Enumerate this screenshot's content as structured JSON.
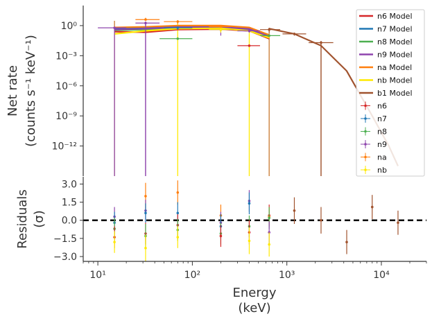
{
  "chart_data": [
    {
      "type": "line",
      "panel": "spectrum",
      "ylabel": "Net rate",
      "ylabel_unit": "(counts s⁻¹ keV⁻¹)",
      "xscale": "log",
      "yscale": "log",
      "xlim": [
        7,
        30000
      ],
      "ylim": [
        1e-15,
        100
      ],
      "yticks": [
        {
          "v": 1,
          "label": "10⁰"
        },
        {
          "v": 0.001,
          "label": "10⁻³"
        },
        {
          "v": 1e-06,
          "label": "10⁻⁶"
        },
        {
          "v": 1e-09,
          "label": "10⁻⁹"
        },
        {
          "v": 1e-12,
          "label": "10⁻¹²"
        }
      ],
      "legend_position": "top-right",
      "models": [
        {
          "name": "n6 Model",
          "color": "#d62728",
          "x": [
            15,
            32,
            70,
            200,
            400,
            650
          ],
          "y": [
            0.25,
            0.22,
            0.4,
            0.45,
            0.3,
            0.05
          ]
        },
        {
          "name": "n7 Model",
          "color": "#1f77b4",
          "x": [
            15,
            32,
            70,
            200,
            400,
            650
          ],
          "y": [
            0.5,
            0.6,
            0.8,
            0.8,
            0.5,
            0.09
          ]
        },
        {
          "name": "n8 Model",
          "color": "#4caf50",
          "x": [
            15,
            32,
            70,
            200,
            400,
            650
          ],
          "y": [
            0.35,
            0.4,
            0.55,
            0.6,
            0.4,
            0.07
          ]
        },
        {
          "name": "n9 Model",
          "color": "#8e44ad",
          "x": [
            15,
            32,
            70,
            200,
            400,
            650
          ],
          "y": [
            0.4,
            0.5,
            0.7,
            0.7,
            0.45,
            0.08
          ]
        },
        {
          "name": "na Model",
          "color": "#ff7f0e",
          "x": [
            15,
            32,
            70,
            200,
            400,
            650
          ],
          "y": [
            0.65,
            0.75,
            1.0,
            1.0,
            0.65,
            0.12
          ]
        },
        {
          "name": "nb Model",
          "color": "#ffea00",
          "x": [
            15,
            32,
            70,
            200,
            400,
            650
          ],
          "y": [
            0.15,
            0.3,
            0.5,
            0.55,
            0.3,
            0.06
          ]
        },
        {
          "name": "b1 Model",
          "color": "#a0522d",
          "x": [
            650,
            1200,
            2300,
            4300,
            8000,
            12000,
            15000
          ],
          "y": [
            0.5,
            0.15,
            0.01,
            3e-05,
            1e-09,
            1e-12,
            1e-14
          ]
        }
      ],
      "data_series": [
        {
          "name": "n6",
          "color": "#d62728",
          "points": [
            {
              "x": 400,
              "xlo": 300,
              "xhi": 520,
              "y": 0.01,
              "ylo": 0.008,
              "yhi": 0.012
            }
          ]
        },
        {
          "name": "n7",
          "color": "#1f77b4",
          "points": [
            {
              "x": 70,
              "xlo": 50,
              "xhi": 100,
              "y": 0.6,
              "ylo": 0.4,
              "yhi": 0.8
            }
          ]
        },
        {
          "name": "n8",
          "color": "#4caf50",
          "points": [
            {
              "x": 70,
              "xlo": 45,
              "xhi": 100,
              "y": 0.05,
              "ylo": 0.04,
              "yhi": 0.06
            },
            {
              "x": 650,
              "xlo": 520,
              "xhi": 850,
              "y": 0.1,
              "ylo": 0.08,
              "yhi": 0.12
            }
          ]
        },
        {
          "name": "n9",
          "color": "#8e44ad",
          "points": [
            {
              "x": 15,
              "xlo": 10,
              "xhi": 20,
              "y": 0.6,
              "ylo": 1e-15,
              "yhi": 0.8
            },
            {
              "x": 32,
              "xlo": 25,
              "xhi": 45,
              "y": 1.8,
              "ylo": 1e-15,
              "yhi": 2.5
            },
            {
              "x": 200,
              "xlo": 150,
              "xhi": 270,
              "y": 0.4,
              "ylo": 0.1,
              "yhi": 0.6
            },
            {
              "x": 400,
              "xlo": 300,
              "xhi": 520,
              "y": 0.3,
              "ylo": 0.2,
              "yhi": 0.4
            }
          ]
        },
        {
          "name": "na",
          "color": "#ff7f0e",
          "points": [
            {
              "x": 32,
              "xlo": 25,
              "xhi": 45,
              "y": 4.0,
              "ylo": 3.0,
              "yhi": 6.0
            },
            {
              "x": 70,
              "xlo": 50,
              "xhi": 100,
              "y": 2.5,
              "ylo": 1.5,
              "yhi": 3.5
            },
            {
              "x": 200,
              "xlo": 150,
              "xhi": 270,
              "y": 0.8,
              "ylo": 0.5,
              "yhi": 1.1
            }
          ]
        },
        {
          "name": "nb",
          "color": "#ffea00",
          "points": [
            {
              "x": 200,
              "xlo": 150,
              "xhi": 270,
              "y": 0.4,
              "ylo": 0.2,
              "yhi": 0.6
            }
          ]
        },
        {
          "name": "b1",
          "color": "#a0522d",
          "points": [
            {
              "x": 650,
              "xlo": 520,
              "xhi": 850,
              "y": 0.4,
              "ylo": 0.2,
              "yhi": 0.6
            },
            {
              "x": 1200,
              "xlo": 900,
              "xhi": 1600,
              "y": 0.15,
              "ylo": 0.1,
              "yhi": 0.2
            },
            {
              "x": 2300,
              "xlo": 1700,
              "xhi": 3100,
              "y": 0.02,
              "ylo": 1e-15,
              "yhi": 0.03
            }
          ]
        }
      ],
      "vertical_drops": [
        {
          "x": 15,
          "color": "#c8782f",
          "ylo": 1e-15,
          "yhi": 3
        },
        {
          "x": 32,
          "color": "#8e44ad",
          "ylo": 1e-15,
          "yhi": 2.5
        },
        {
          "x": 70,
          "color": "#ffea00",
          "ylo": 1e-15,
          "yhi": 2.5
        },
        {
          "x": 400,
          "color": "#ffea00",
          "ylo": 1e-15,
          "yhi": 0.4
        },
        {
          "x": 650,
          "color": "#c8782f",
          "ylo": 1e-15,
          "yhi": 0.6
        },
        {
          "x": 2300,
          "color": "#a0522d",
          "ylo": 1e-15,
          "yhi": 0.02
        }
      ]
    },
    {
      "type": "scatter",
      "panel": "residuals",
      "ylabel": "Residuals",
      "ylabel_unit": "(σ)",
      "xlabel": "Energy",
      "xlabel_unit": "(keV)",
      "xscale": "log",
      "xlim": [
        7,
        30000
      ],
      "ylim": [
        -3.4,
        3.6
      ],
      "yticks": [
        {
          "v": 3.0,
          "label": "3.0"
        },
        {
          "v": 1.5,
          "label": "1.5"
        },
        {
          "v": 0.0,
          "label": "0.0"
        },
        {
          "v": -1.5,
          "label": "−1.5"
        },
        {
          "v": -3.0,
          "label": "−3.0"
        }
      ],
      "xticks": [
        {
          "v": 10,
          "label": "10¹"
        },
        {
          "v": 100,
          "label": "10²"
        },
        {
          "v": 1000,
          "label": "10³"
        },
        {
          "v": 10000,
          "label": "10⁴"
        }
      ],
      "zero_line": 0,
      "points": [
        {
          "x": 15,
          "y": 0.3,
          "err": 0.8,
          "color": "#8e44ad"
        },
        {
          "x": 15,
          "y": -0.2,
          "err": 0.9,
          "color": "#1f77b4"
        },
        {
          "x": 15,
          "y": -0.7,
          "err": 0.9,
          "color": "#4caf50"
        },
        {
          "x": 15,
          "y": -1.4,
          "err": 0.9,
          "color": "#d62728"
        },
        {
          "x": 15,
          "y": -1.8,
          "err": 0.9,
          "color": "#ffea00"
        },
        {
          "x": 32,
          "y": 2.0,
          "err": 1.1,
          "color": "#ff7f0e"
        },
        {
          "x": 32,
          "y": 0.8,
          "err": 0.9,
          "color": "#8e44ad"
        },
        {
          "x": 32,
          "y": 0.6,
          "err": 0.8,
          "color": "#1f77b4"
        },
        {
          "x": 32,
          "y": -1.1,
          "err": 0.9,
          "color": "#d62728"
        },
        {
          "x": 32,
          "y": -1.3,
          "err": 1.0,
          "color": "#4caf50"
        },
        {
          "x": 32,
          "y": -2.3,
          "err": 1.1,
          "color": "#ffea00"
        },
        {
          "x": 70,
          "y": 2.3,
          "err": 1.0,
          "color": "#ff7f0e"
        },
        {
          "x": 70,
          "y": 0.6,
          "err": 0.9,
          "color": "#1f77b4"
        },
        {
          "x": 70,
          "y": -0.4,
          "err": 0.9,
          "color": "#d62728"
        },
        {
          "x": 70,
          "y": -0.8,
          "err": 0.9,
          "color": "#4caf50"
        },
        {
          "x": 70,
          "y": -1.4,
          "err": 0.9,
          "color": "#ffea00"
        },
        {
          "x": 200,
          "y": 0.4,
          "err": 0.9,
          "color": "#ff7f0e"
        },
        {
          "x": 200,
          "y": -0.2,
          "err": 0.9,
          "color": "#8e44ad"
        },
        {
          "x": 200,
          "y": -0.5,
          "err": 1.0,
          "color": "#1f77b4"
        },
        {
          "x": 200,
          "y": -1.1,
          "err": 0.9,
          "color": "#4caf50"
        },
        {
          "x": 200,
          "y": -1.3,
          "err": 0.9,
          "color": "#d62728"
        },
        {
          "x": 400,
          "y": 1.6,
          "err": 0.9,
          "color": "#8e44ad"
        },
        {
          "x": 400,
          "y": 1.4,
          "err": 0.9,
          "color": "#1f77b4"
        },
        {
          "x": 400,
          "y": -0.5,
          "err": 0.9,
          "color": "#4caf50"
        },
        {
          "x": 400,
          "y": -1.0,
          "err": 1.0,
          "color": "#d62728"
        },
        {
          "x": 400,
          "y": -1.7,
          "err": 1.1,
          "color": "#ffea00"
        },
        {
          "x": 650,
          "y": 0.4,
          "err": 0.9,
          "color": "#d62728"
        },
        {
          "x": 650,
          "y": 0.3,
          "err": 0.8,
          "color": "#ff7f0e"
        },
        {
          "x": 650,
          "y": 0.2,
          "err": 0.9,
          "color": "#4caf50"
        },
        {
          "x": 650,
          "y": -1.0,
          "err": 0.9,
          "color": "#8e44ad"
        },
        {
          "x": 650,
          "y": -2.0,
          "err": 1.0,
          "color": "#ffea00"
        },
        {
          "x": 1200,
          "y": 0.8,
          "err": 1.1,
          "color": "#a0522d"
        },
        {
          "x": 2300,
          "y": 0.0,
          "err": 1.1,
          "color": "#a0522d"
        },
        {
          "x": 4300,
          "y": -1.8,
          "err": 1.0,
          "color": "#a0522d"
        },
        {
          "x": 8000,
          "y": 1.1,
          "err": 1.0,
          "color": "#a0522d"
        },
        {
          "x": 15000,
          "y": -0.2,
          "err": 1.0,
          "color": "#a0522d"
        }
      ]
    }
  ],
  "legend": {
    "entries": [
      {
        "label": "n6 Model",
        "kind": "line",
        "color": "#d62728"
      },
      {
        "label": "n7 Model",
        "kind": "line",
        "color": "#1f77b4"
      },
      {
        "label": "n8 Model",
        "kind": "line",
        "color": "#4caf50"
      },
      {
        "label": "n9 Model",
        "kind": "line",
        "color": "#8e44ad"
      },
      {
        "label": "na Model",
        "kind": "line",
        "color": "#ff7f0e"
      },
      {
        "label": "nb Model",
        "kind": "line",
        "color": "#ffea00"
      },
      {
        "label": "b1 Model",
        "kind": "line",
        "color": "#a0522d"
      },
      {
        "label": "n6",
        "kind": "errorbar",
        "color": "#d62728"
      },
      {
        "label": "n7",
        "kind": "errorbar",
        "color": "#1f77b4"
      },
      {
        "label": "n8",
        "kind": "errorbar",
        "color": "#4caf50"
      },
      {
        "label": "n9",
        "kind": "errorbar",
        "color": "#8e44ad"
      },
      {
        "label": "na",
        "kind": "errorbar",
        "color": "#ff7f0e"
      },
      {
        "label": "nb",
        "kind": "errorbar",
        "color": "#ffea00"
      }
    ]
  }
}
